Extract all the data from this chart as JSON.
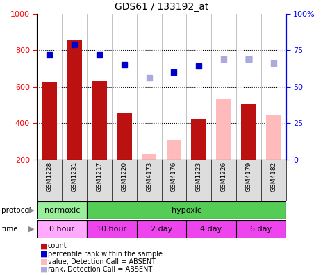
{
  "title": "GDS61 / 133192_at",
  "samples": [
    "GSM1228",
    "GSM1231",
    "GSM1217",
    "GSM1220",
    "GSM4173",
    "GSM4176",
    "GSM1223",
    "GSM1226",
    "GSM4179",
    "GSM4182"
  ],
  "bar_values": [
    625,
    860,
    630,
    455,
    null,
    null,
    420,
    null,
    505,
    null
  ],
  "bar_values_absent": [
    null,
    null,
    null,
    null,
    230,
    310,
    null,
    530,
    null,
    445
  ],
  "rank_values": [
    72,
    79,
    72,
    65,
    null,
    60,
    64,
    null,
    69,
    null
  ],
  "rank_values_absent": [
    null,
    null,
    null,
    null,
    56,
    null,
    null,
    69,
    69,
    66
  ],
  "ylim_left": [
    200,
    1000
  ],
  "ylim_right": [
    0,
    100
  ],
  "yticks_left": [
    200,
    400,
    600,
    800,
    1000
  ],
  "yticks_right": [
    0,
    25,
    50,
    75,
    100
  ],
  "bar_color_present": "#bb1111",
  "bar_color_absent": "#ffbbbb",
  "rank_color_present": "#0000cc",
  "rank_color_absent": "#aaaadd",
  "protocol_color_normoxic": "#99ee99",
  "protocol_color_hypoxic": "#55cc55",
  "time_color_light": "#ffaaff",
  "time_color_vivid": "#ee44ee",
  "legend_labels": [
    "count",
    "percentile rank within the sample",
    "value, Detection Call = ABSENT",
    "rank, Detection Call = ABSENT"
  ],
  "legend_colors": [
    "#bb1111",
    "#0000cc",
    "#ffbbbb",
    "#aaaadd"
  ],
  "background_color": "#ffffff",
  "tick_label_gray": "#cccccc"
}
